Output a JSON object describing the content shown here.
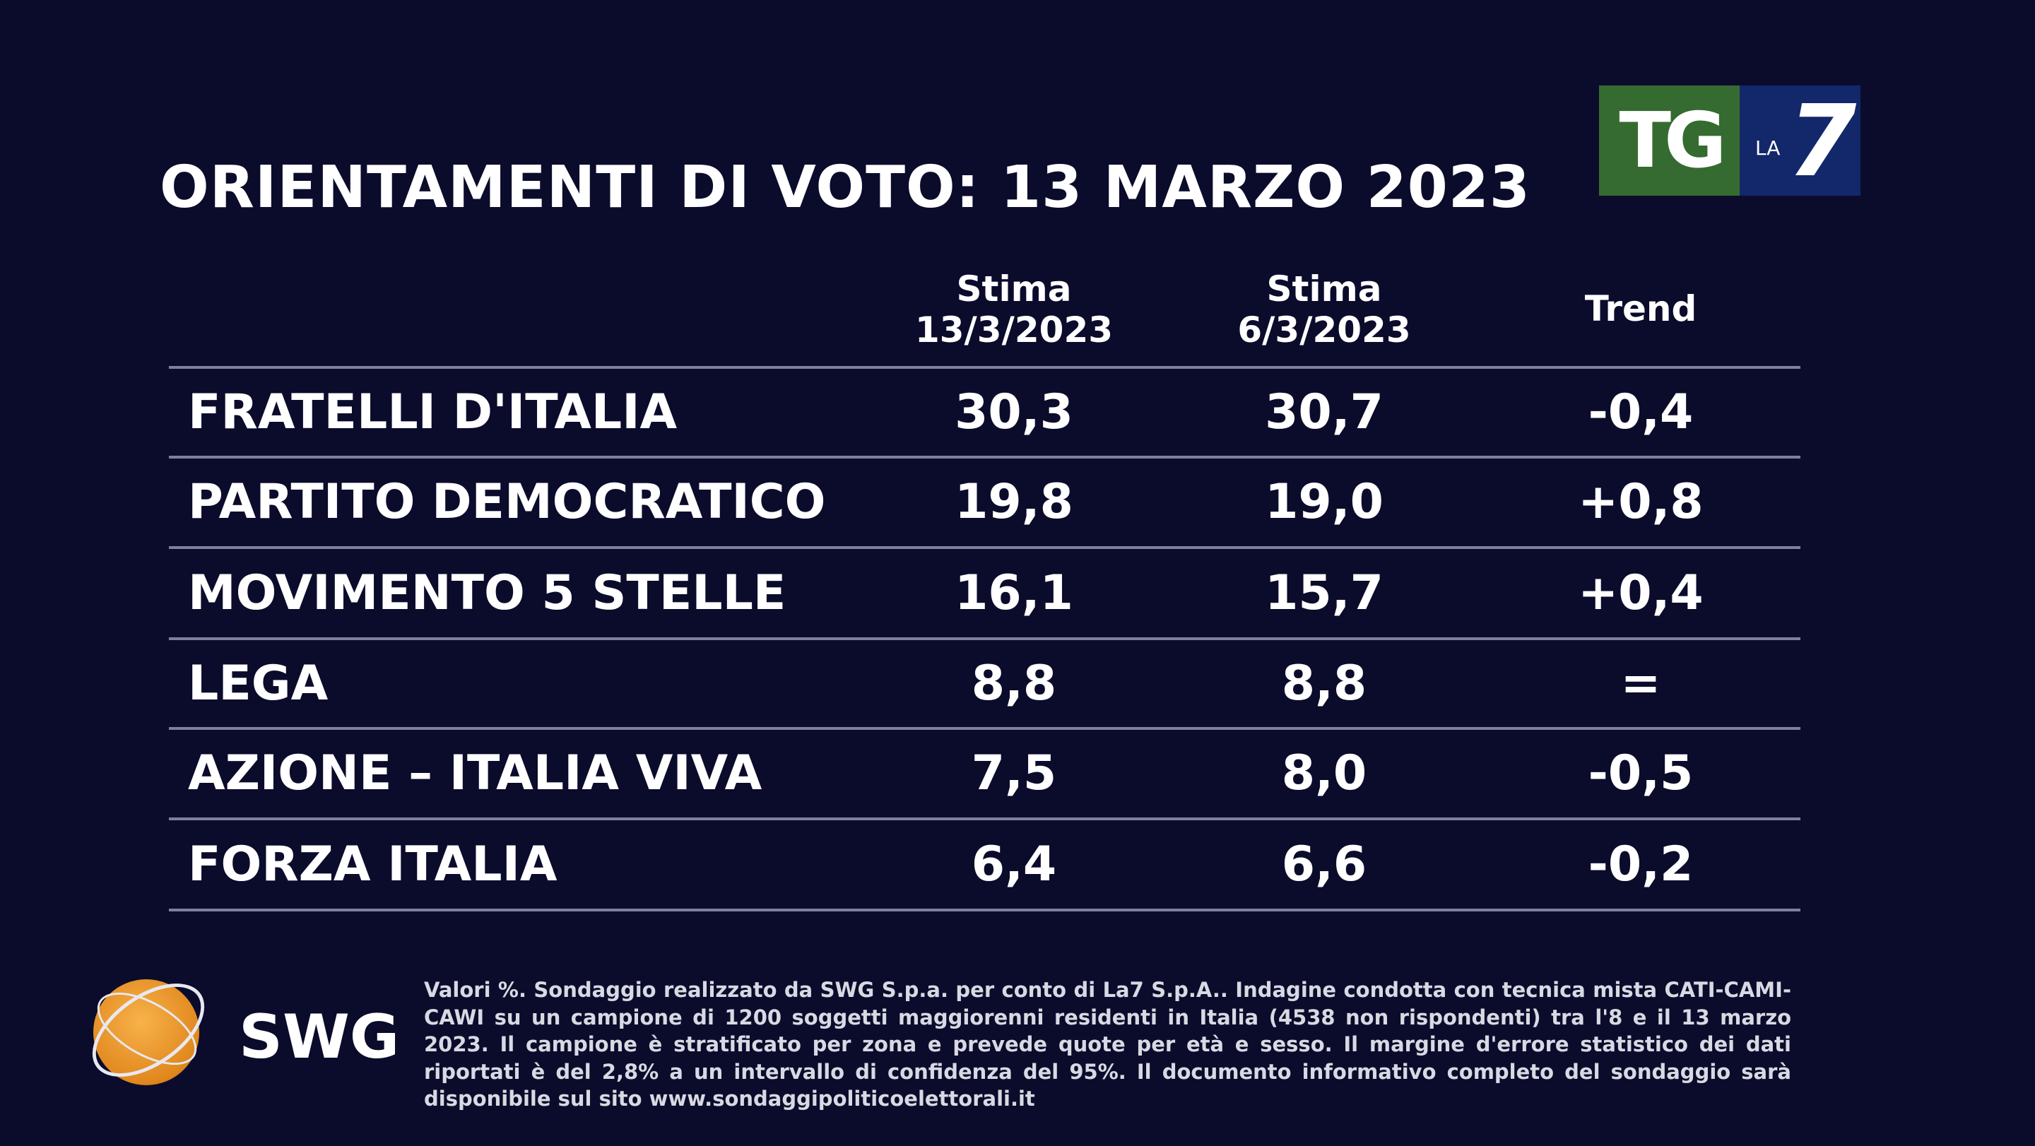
{
  "title": "ORIENTAMENTI DI VOTO: 13 MARZO 2023",
  "logo": {
    "tg": "TG",
    "la": "LA",
    "seven": "7",
    "green": "#356b30",
    "blue": "#13286a"
  },
  "headers": {
    "col1": {
      "line1": "Stima",
      "line2": "13/3/2023"
    },
    "col2": {
      "line1": "Stima",
      "line2": "6/3/2023"
    },
    "trend": "Trend"
  },
  "rows": [
    {
      "party": "FRATELLI D'ITALIA",
      "current": "30,3",
      "previous": "30,7",
      "trend": "-0,4"
    },
    {
      "party": "PARTITO DEMOCRATICO",
      "current": "19,8",
      "previous": "19,0",
      "trend": "+0,8"
    },
    {
      "party": "MOVIMENTO 5 STELLE",
      "current": "16,1",
      "previous": "15,7",
      "trend": "+0,4"
    },
    {
      "party": "LEGA",
      "current": "8,8",
      "previous": "8,8",
      "trend": "="
    },
    {
      "party": "AZIONE – ITALIA VIVA",
      "current": "7,5",
      "previous": "8,0",
      "trend": "-0,5"
    },
    {
      "party": "FORZA ITALIA",
      "current": "6,4",
      "previous": "6,6",
      "trend": "-0,2"
    }
  ],
  "swg": {
    "label": "SWG"
  },
  "footnote": "Valori %. Sondaggio realizzato da SWG S.p.a. per conto di La7 S.p.A.. Indagine condotta con tecnica mista CATI-CAMI-CAWI su un campione di 1200 soggetti maggiorenni residenti in Italia (4538 non rispondenti) tra l'8 e il 13 marzo 2023. Il campione è stratificato per zona e prevede quote per età e sesso. Il margine d'errore statistico dei dati riportati è del 2,8% a un intervallo di confidenza del 95%. Il documento informativo completo del sondaggio sarà disponibile sul sito www.sondaggipoliticoelettorali.it"
}
